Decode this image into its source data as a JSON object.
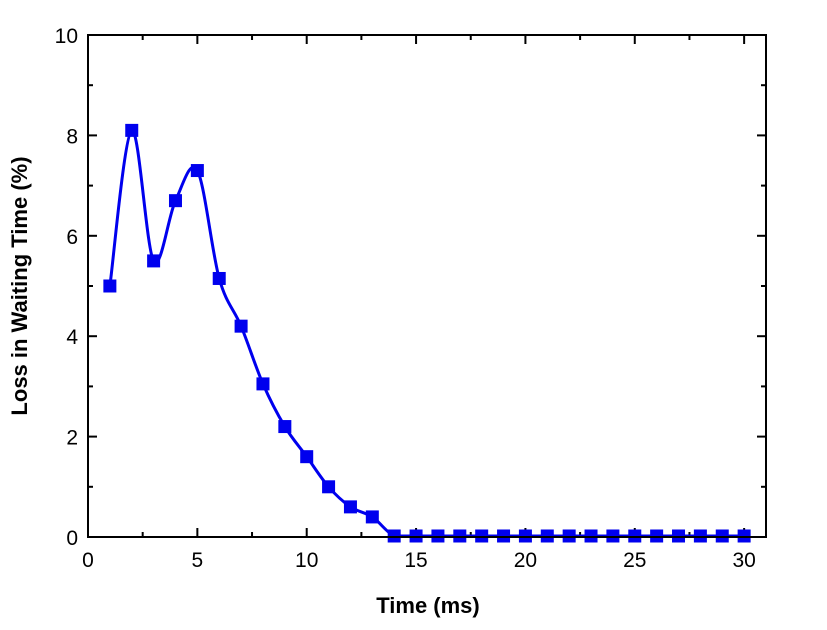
{
  "chart_data": {
    "type": "line",
    "title": "",
    "xlabel": "Time (ms)",
    "ylabel": "Loss in Waiting Time (%)",
    "xlim": [
      0,
      31
    ],
    "ylim": [
      0,
      10
    ],
    "xticks": [
      "0",
      "5",
      "10",
      "15",
      "20",
      "25",
      "30"
    ],
    "yticks": [
      "0",
      "2",
      "4",
      "6",
      "8",
      "10"
    ],
    "grid": false,
    "legend": "none",
    "marker": "square",
    "line_style": "smooth",
    "series": [
      {
        "color": "#0000ee",
        "x": [
          1,
          2,
          3,
          4,
          5,
          6,
          7,
          8,
          9,
          10,
          11,
          12,
          13,
          14,
          15,
          16,
          17,
          18,
          19,
          20,
          21,
          22,
          23,
          24,
          25,
          26,
          27,
          28,
          29,
          30
        ],
        "y": [
          5.0,
          8.1,
          5.5,
          6.7,
          7.3,
          5.15,
          4.2,
          3.05,
          2.2,
          1.6,
          1.0,
          0.6,
          0.4,
          0.02,
          0.02,
          0.02,
          0.02,
          0.02,
          0.02,
          0.02,
          0.02,
          0.02,
          0.02,
          0.02,
          0.02,
          0.02,
          0.02,
          0.02,
          0.02,
          0.02
        ]
      }
    ]
  }
}
